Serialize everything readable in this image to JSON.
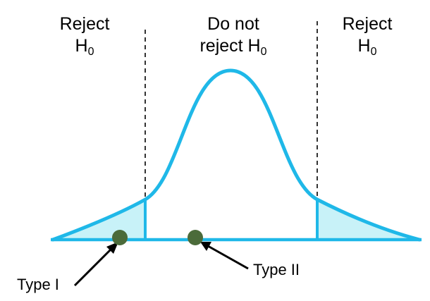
{
  "regions": {
    "left": {
      "line1": "Reject",
      "prefix": "H",
      "subscript": "0"
    },
    "center": {
      "line1": "Do not",
      "prefix": "reject H",
      "subscript": "0"
    },
    "right": {
      "line1": "Reject",
      "prefix": "H",
      "subscript": "0"
    }
  },
  "errors": {
    "type1": "Type I",
    "type2": "Type II"
  },
  "colors": {
    "curve": "#1fb8e8",
    "tail_fill": "#c8f2f8",
    "dot": "#4b6b3a",
    "text": "#000000"
  }
}
